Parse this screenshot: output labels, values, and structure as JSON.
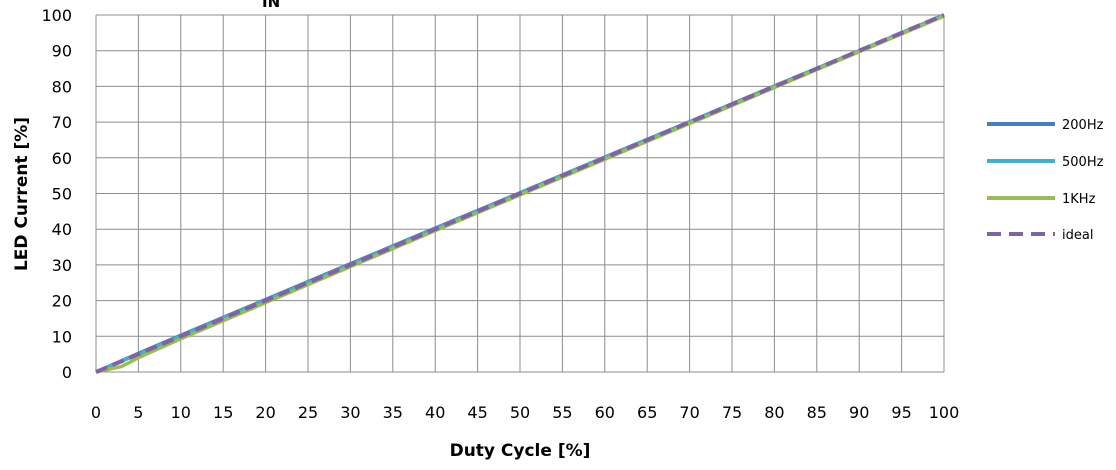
{
  "chart_data": {
    "type": "line",
    "title_visible_fragment": "IN",
    "xlabel": "Duty Cycle [%]",
    "ylabel": "LED Current [%]",
    "xlim": [
      0,
      100
    ],
    "ylim": [
      0,
      100
    ],
    "xticks": [
      0,
      5,
      10,
      15,
      20,
      25,
      30,
      35,
      40,
      45,
      50,
      55,
      60,
      65,
      70,
      75,
      80,
      85,
      90,
      95,
      100
    ],
    "yticks": [
      0,
      10,
      20,
      30,
      40,
      50,
      60,
      70,
      80,
      90,
      100
    ],
    "grid": true,
    "legend_position": "right",
    "series": [
      {
        "name": "200Hz",
        "color": "#4a7ebb",
        "style": "solid",
        "x": [
          0,
          5,
          10,
          20,
          30,
          40,
          50,
          60,
          70,
          80,
          90,
          100
        ],
        "y": [
          0,
          5.2,
          10.3,
          20.3,
          30.3,
          40.3,
          50.2,
          60.2,
          70.1,
          80.1,
          90,
          100
        ]
      },
      {
        "name": "500Hz",
        "color": "#4bacc6",
        "style": "solid",
        "x": [
          0,
          5,
          10,
          20,
          30,
          40,
          50,
          60,
          70,
          80,
          90,
          100
        ],
        "y": [
          0,
          5.0,
          10.1,
          20.1,
          30.1,
          40.1,
          50.1,
          60.1,
          70.0,
          80.0,
          90,
          100
        ]
      },
      {
        "name": "1KHz",
        "color": "#9bbb59",
        "style": "solid",
        "x": [
          0,
          3,
          5,
          10,
          20,
          30,
          40,
          50,
          60,
          70,
          80,
          90,
          100
        ],
        "y": [
          0,
          1.5,
          4.0,
          9.3,
          19.4,
          29.5,
          39.6,
          49.6,
          59.6,
          69.6,
          79.7,
          89.7,
          99.7
        ]
      },
      {
        "name": "ideal",
        "color": "#8064a2",
        "style": "dashed",
        "x": [
          0,
          100
        ],
        "y": [
          0,
          100
        ]
      }
    ]
  }
}
